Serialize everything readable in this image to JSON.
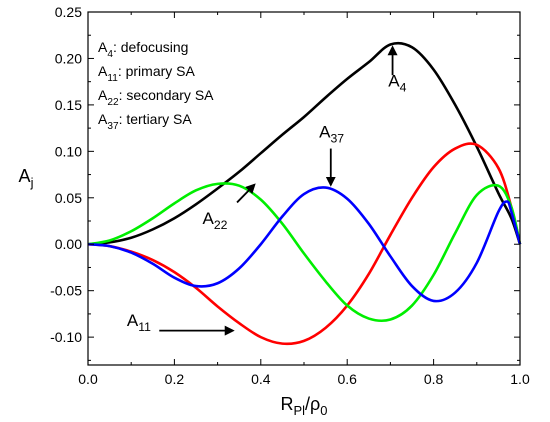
{
  "chart_data": {
    "type": "line",
    "xlabel": {
      "main": "R",
      "sub": "Pl",
      "sep": "/ρ",
      "sub2": "0"
    },
    "ylabel": {
      "main": "A",
      "sub": "j"
    },
    "xlim": [
      0.0,
      1.0
    ],
    "ylim": [
      -0.13,
      0.25
    ],
    "x_ticks": [
      "0.0",
      "0.2",
      "0.4",
      "0.6",
      "0.8",
      "1.0"
    ],
    "y_ticks": [
      "-0.10",
      "-0.05",
      "0.00",
      "0.05",
      "0.10",
      "0.15",
      "0.20",
      "0.25"
    ],
    "legend": [
      {
        "main": "A",
        "sub": "4",
        "text": ": defocusing"
      },
      {
        "main": "A",
        "sub": "11",
        "text": ": primary SA"
      },
      {
        "main": "A",
        "sub": "22",
        "text": ": secondary SA"
      },
      {
        "main": "A",
        "sub": "37",
        "text": ": tertiary SA"
      }
    ],
    "series": [
      {
        "color": "#000000",
        "x": [
          0.0,
          0.05,
          0.1,
          0.15,
          0.2,
          0.25,
          0.3,
          0.35,
          0.4,
          0.45,
          0.5,
          0.55,
          0.6,
          0.65,
          0.7,
          0.75,
          0.8,
          0.85,
          0.9,
          0.95,
          0.98,
          1.0
        ],
        "y": [
          0.0,
          0.002,
          0.007,
          0.016,
          0.028,
          0.043,
          0.06,
          0.078,
          0.098,
          0.118,
          0.137,
          0.158,
          0.178,
          0.196,
          0.215,
          0.212,
          0.188,
          0.15,
          0.105,
          0.055,
          0.028,
          0.0
        ]
      },
      {
        "color": "#ff0000",
        "x": [
          0.0,
          0.05,
          0.1,
          0.15,
          0.2,
          0.25,
          0.3,
          0.35,
          0.4,
          0.45,
          0.5,
          0.55,
          0.6,
          0.65,
          0.7,
          0.75,
          0.8,
          0.85,
          0.9,
          0.95,
          0.98,
          1.0
        ],
        "y": [
          0.0,
          -0.002,
          -0.008,
          -0.017,
          -0.03,
          -0.047,
          -0.067,
          -0.085,
          -0.1,
          -0.107,
          -0.104,
          -0.09,
          -0.066,
          -0.032,
          0.01,
          0.05,
          0.083,
          0.103,
          0.107,
          0.082,
          0.04,
          0.0
        ]
      },
      {
        "color": "#00ee00",
        "x": [
          0.0,
          0.05,
          0.1,
          0.15,
          0.2,
          0.25,
          0.3,
          0.35,
          0.4,
          0.45,
          0.5,
          0.55,
          0.6,
          0.65,
          0.7,
          0.75,
          0.8,
          0.85,
          0.9,
          0.95,
          0.98,
          1.0
        ],
        "y": [
          0.0,
          0.004,
          0.014,
          0.028,
          0.044,
          0.058,
          0.065,
          0.063,
          0.048,
          0.022,
          -0.01,
          -0.04,
          -0.066,
          -0.08,
          -0.081,
          -0.066,
          -0.033,
          0.012,
          0.053,
          0.063,
          0.04,
          0.0
        ]
      },
      {
        "color": "#0000ff",
        "x": [
          0.0,
          0.05,
          0.1,
          0.15,
          0.2,
          0.25,
          0.3,
          0.35,
          0.4,
          0.45,
          0.5,
          0.55,
          0.6,
          0.65,
          0.7,
          0.75,
          0.8,
          0.85,
          0.9,
          0.95,
          0.97,
          0.98,
          1.0
        ],
        "y": [
          0.0,
          -0.002,
          -0.009,
          -0.021,
          -0.036,
          -0.045,
          -0.042,
          -0.026,
          0.0,
          0.03,
          0.054,
          0.061,
          0.049,
          0.022,
          -0.013,
          -0.045,
          -0.061,
          -0.052,
          -0.02,
          0.035,
          0.046,
          0.035,
          0.0
        ]
      }
    ],
    "annotations": [
      {
        "main": "A",
        "sub": "4",
        "x": 0.695,
        "y": 0.17,
        "arrow_from": [
          0.705,
          0.182
        ],
        "arrow_to": [
          0.705,
          0.212
        ]
      },
      {
        "main": "A",
        "sub": "37",
        "x": 0.535,
        "y": 0.115,
        "arrow_from": [
          0.562,
          0.103
        ],
        "arrow_to": [
          0.562,
          0.064
        ]
      },
      {
        "main": "A",
        "sub": "22",
        "x": 0.265,
        "y": 0.022,
        "arrow_from": [
          0.345,
          0.045
        ],
        "arrow_to": [
          0.385,
          0.064
        ]
      },
      {
        "main": "A",
        "sub": "11",
        "x": 0.09,
        "y": -0.088,
        "arrow_from": [
          0.165,
          -0.093
        ],
        "arrow_to": [
          0.335,
          -0.093
        ]
      }
    ]
  }
}
